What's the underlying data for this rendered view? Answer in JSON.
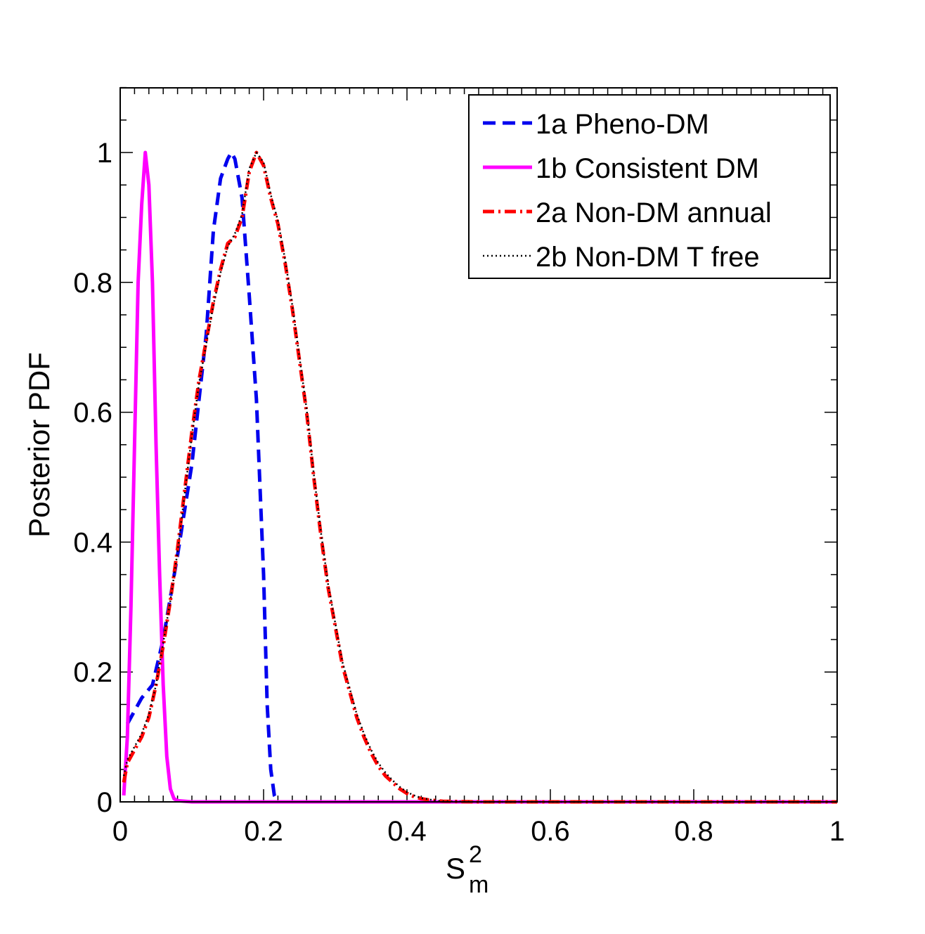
{
  "chart_data": {
    "type": "line",
    "title": "",
    "xlabel": "S",
    "xlabel_superscript": "2",
    "xlabel_subscript": "m",
    "ylabel": "Posterior PDF",
    "xlim": [
      0,
      1
    ],
    "ylim": [
      0,
      1.1
    ],
    "xticks": [
      0,
      0.2,
      0.4,
      0.6,
      0.8,
      1
    ],
    "xtick_labels": [
      "0",
      "0.2",
      "0.4",
      "0.6",
      "0.8",
      "1"
    ],
    "yticks": [
      0,
      0.2,
      0.4,
      0.6,
      0.8,
      1
    ],
    "ytick_labels": [
      "0",
      "0.2",
      "0.4",
      "0.6",
      "0.8",
      "1"
    ],
    "grid": false,
    "legend_position": "top-right",
    "series": [
      {
        "name": "1a Pheno-DM",
        "color": "#0000ee",
        "style": "dashed",
        "x": [
          0.01,
          0.02,
          0.03,
          0.045,
          0.06,
          0.08,
          0.1,
          0.12,
          0.13,
          0.14,
          0.15,
          0.155,
          0.16,
          0.17,
          0.18,
          0.19,
          0.2,
          0.205,
          0.21,
          0.215,
          0.22
        ],
        "y": [
          0.12,
          0.14,
          0.16,
          0.18,
          0.25,
          0.38,
          0.52,
          0.72,
          0.88,
          0.96,
          0.99,
          1.0,
          0.99,
          0.93,
          0.78,
          0.62,
          0.35,
          0.15,
          0.05,
          0.01,
          0.0
        ]
      },
      {
        "name": "1b Consistent DM",
        "color": "#ff00ff",
        "style": "solid",
        "x": [
          0.005,
          0.01,
          0.015,
          0.02,
          0.025,
          0.03,
          0.035,
          0.04,
          0.045,
          0.05,
          0.055,
          0.06,
          0.065,
          0.07,
          0.075,
          0.08,
          0.09,
          0.1,
          0.2,
          0.4,
          0.6,
          0.8,
          1.0
        ],
        "y": [
          0.01,
          0.1,
          0.3,
          0.55,
          0.8,
          0.92,
          1.0,
          0.95,
          0.8,
          0.55,
          0.35,
          0.18,
          0.07,
          0.02,
          0.005,
          0.002,
          0.001,
          0.0,
          0.0,
          0.0,
          0.0,
          0.0,
          0.0
        ]
      },
      {
        "name": "2a Non-DM annual",
        "color": "#ff0000",
        "style": "dashdot",
        "x": [
          0.005,
          0.01,
          0.02,
          0.03,
          0.04,
          0.05,
          0.06,
          0.07,
          0.08,
          0.09,
          0.1,
          0.11,
          0.12,
          0.13,
          0.14,
          0.15,
          0.16,
          0.17,
          0.18,
          0.19,
          0.2,
          0.21,
          0.22,
          0.23,
          0.24,
          0.25,
          0.26,
          0.27,
          0.28,
          0.29,
          0.3,
          0.31,
          0.32,
          0.33,
          0.34,
          0.35,
          0.36,
          0.37,
          0.38,
          0.39,
          0.4,
          0.41,
          0.42,
          0.43,
          0.44,
          0.45,
          0.5,
          0.6,
          0.7,
          0.8,
          0.9,
          1.0
        ],
        "y": [
          0.03,
          0.06,
          0.08,
          0.1,
          0.13,
          0.18,
          0.24,
          0.31,
          0.39,
          0.48,
          0.57,
          0.65,
          0.71,
          0.77,
          0.82,
          0.86,
          0.87,
          0.9,
          0.97,
          1.0,
          0.98,
          0.93,
          0.89,
          0.83,
          0.76,
          0.68,
          0.6,
          0.5,
          0.41,
          0.33,
          0.27,
          0.21,
          0.17,
          0.13,
          0.1,
          0.075,
          0.055,
          0.04,
          0.03,
          0.02,
          0.013,
          0.008,
          0.005,
          0.003,
          0.002,
          0.001,
          0.0,
          0.0,
          0.0,
          0.0,
          0.0,
          0.0
        ]
      },
      {
        "name": "2b Non-DM T free",
        "color": "#000000",
        "style": "dotted",
        "x": [
          0.005,
          0.01,
          0.02,
          0.03,
          0.04,
          0.05,
          0.06,
          0.07,
          0.08,
          0.09,
          0.1,
          0.11,
          0.12,
          0.13,
          0.14,
          0.15,
          0.16,
          0.17,
          0.18,
          0.19,
          0.2,
          0.21,
          0.22,
          0.23,
          0.24,
          0.25,
          0.26,
          0.27,
          0.28,
          0.29,
          0.3,
          0.31,
          0.32,
          0.33,
          0.34,
          0.35,
          0.36,
          0.37,
          0.38,
          0.39,
          0.4,
          0.41,
          0.42,
          0.43,
          0.44,
          0.45,
          0.5,
          0.6,
          0.7,
          0.8,
          0.9,
          1.0
        ],
        "y": [
          0.04,
          0.065,
          0.085,
          0.105,
          0.135,
          0.18,
          0.245,
          0.31,
          0.385,
          0.475,
          0.565,
          0.645,
          0.705,
          0.765,
          0.815,
          0.855,
          0.875,
          0.905,
          0.975,
          1.0,
          0.985,
          0.935,
          0.895,
          0.835,
          0.765,
          0.685,
          0.605,
          0.505,
          0.415,
          0.335,
          0.275,
          0.215,
          0.175,
          0.135,
          0.105,
          0.08,
          0.06,
          0.045,
          0.033,
          0.023,
          0.015,
          0.01,
          0.006,
          0.004,
          0.002,
          0.001,
          0.0,
          0.0,
          0.0,
          0.0,
          0.0,
          0.0
        ]
      }
    ]
  }
}
